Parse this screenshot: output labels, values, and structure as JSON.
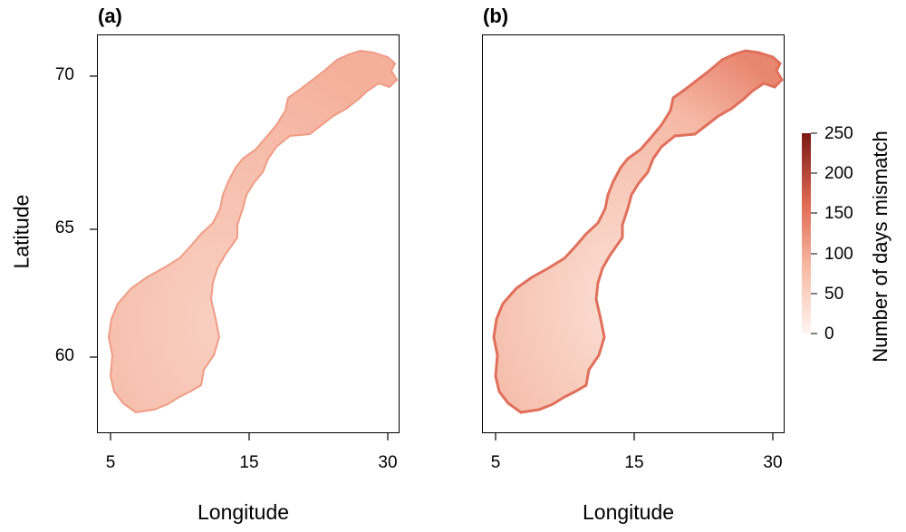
{
  "panels": [
    {
      "tag": "(a)",
      "shade": "low"
    },
    {
      "tag": "(b)",
      "shade": "high"
    }
  ],
  "axes": {
    "xlabel": "Longitude",
    "ylabel": "Latitude",
    "xticks": [
      "5",
      "15",
      "30"
    ],
    "yticks": [
      "70",
      "65",
      "60"
    ]
  },
  "colorbar": {
    "label": "Number of days mismatch",
    "ticks": [
      "250",
      "200",
      "150",
      "100",
      "50",
      "0"
    ],
    "range": [
      0,
      250
    ],
    "colors": {
      "low": "#fff1ec",
      "mid": "#f0a48c",
      "high": "#7a1a14"
    }
  },
  "map_colors": {
    "panel_a": {
      "fill": "#f7c3b2",
      "coast": "#ee9c86"
    },
    "panel_b": {
      "fill": "#f9cfc0",
      "coast": "#e3705c"
    }
  }
}
